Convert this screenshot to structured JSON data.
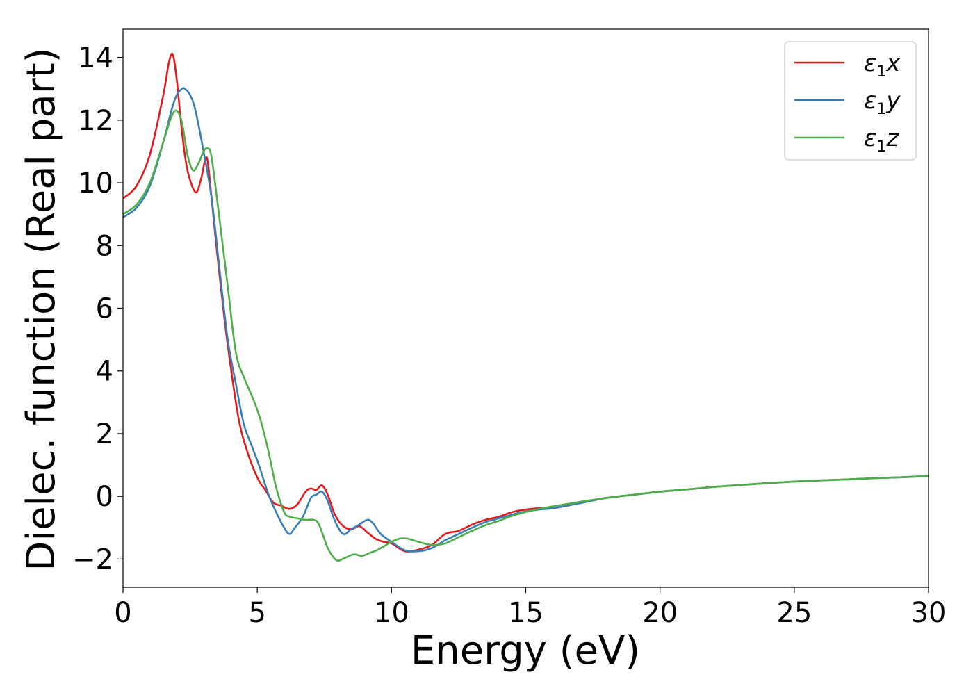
{
  "chart_data": {
    "type": "line",
    "title": "",
    "xlabel": "Energy (eV)",
    "ylabel": "Dielec. function (Real part)",
    "xlim": [
      0,
      30
    ],
    "ylim": [
      -2.9,
      14.9
    ],
    "x_ticks": [
      0,
      5,
      10,
      15,
      20,
      25,
      30
    ],
    "x_tick_labels": [
      "0",
      "5",
      "10",
      "15",
      "20",
      "25",
      "30"
    ],
    "y_ticks": [
      -2,
      0,
      2,
      4,
      6,
      8,
      10,
      12,
      14
    ],
    "y_tick_labels": [
      "−2",
      "0",
      "2",
      "4",
      "6",
      "8",
      "10",
      "12",
      "14"
    ],
    "grid": false,
    "legend_position": "top-right",
    "series": [
      {
        "name": "ε1x",
        "symbol": "ε",
        "subscript": "1",
        "suffix": "x",
        "color": "#e41a1c",
        "x": [
          0,
          0.5,
          1.0,
          1.5,
          1.7,
          1.85,
          2.0,
          2.2,
          2.4,
          2.7,
          2.9,
          3.05,
          3.15,
          3.3,
          3.5,
          3.8,
          4.0,
          4.3,
          4.6,
          5.0,
          5.3,
          5.6,
          5.9,
          6.2,
          6.5,
          6.8,
          7.0,
          7.2,
          7.4,
          7.6,
          7.9,
          8.2,
          8.5,
          8.8,
          9.1,
          9.4,
          9.7,
          10.0,
          10.5,
          11.0,
          11.5,
          12.0,
          12.5,
          13.0,
          13.5,
          14.0,
          14.5,
          15.0,
          15.5,
          16.0,
          17.0,
          18.0,
          19.0,
          20.0,
          21.0,
          22.0,
          23.0,
          24.0,
          25.0,
          26.0,
          27.0,
          28.0,
          29.0,
          30.0
        ],
        "y": [
          9.5,
          9.9,
          10.9,
          12.8,
          13.8,
          14.1,
          13.3,
          11.6,
          10.4,
          9.7,
          10.1,
          10.7,
          10.7,
          9.5,
          7.8,
          5.5,
          4.2,
          2.5,
          1.5,
          0.6,
          0.2,
          -0.2,
          -0.3,
          -0.4,
          -0.25,
          0.15,
          0.25,
          0.2,
          0.35,
          0.1,
          -0.6,
          -0.95,
          -1.05,
          -0.95,
          -1.15,
          -1.35,
          -1.45,
          -1.5,
          -1.75,
          -1.7,
          -1.55,
          -1.2,
          -1.1,
          -0.9,
          -0.75,
          -0.65,
          -0.5,
          -0.42,
          -0.38,
          -0.38,
          -0.22,
          -0.05,
          0.05,
          0.15,
          0.22,
          0.3,
          0.36,
          0.42,
          0.47,
          0.51,
          0.54,
          0.58,
          0.61,
          0.65
        ]
      },
      {
        "name": "ε1y",
        "symbol": "ε",
        "subscript": "1",
        "suffix": "y",
        "color": "#377eb8",
        "x": [
          0,
          0.5,
          1.0,
          1.5,
          1.8,
          2.0,
          2.2,
          2.3,
          2.5,
          2.7,
          3.0,
          3.3,
          3.6,
          3.9,
          4.2,
          4.5,
          4.8,
          5.1,
          5.4,
          5.7,
          6.0,
          6.2,
          6.4,
          6.7,
          7.0,
          7.2,
          7.4,
          7.6,
          7.9,
          8.2,
          8.5,
          8.8,
          9.1,
          9.3,
          9.6,
          10.0,
          10.5,
          11.0,
          11.5,
          12.0,
          12.5,
          13.0,
          13.5,
          14.0,
          14.5,
          15.0,
          15.5,
          16.0,
          17.0,
          18.0,
          19.0,
          20.0,
          21.0,
          22.0,
          23.0,
          24.0,
          25.0,
          26.0,
          27.0,
          28.0,
          29.0,
          30.0
        ],
        "y": [
          8.9,
          9.2,
          9.9,
          11.3,
          12.3,
          12.8,
          13.0,
          13.0,
          12.8,
          12.3,
          11.0,
          9.5,
          7.2,
          5.0,
          3.6,
          2.3,
          1.6,
          0.9,
          0.1,
          -0.5,
          -1.0,
          -1.2,
          -1.0,
          -0.65,
          -0.05,
          0.05,
          0.15,
          -0.1,
          -0.8,
          -1.2,
          -1.05,
          -0.9,
          -0.75,
          -0.85,
          -1.2,
          -1.45,
          -1.72,
          -1.75,
          -1.65,
          -1.4,
          -1.2,
          -1.0,
          -0.82,
          -0.7,
          -0.58,
          -0.48,
          -0.42,
          -0.38,
          -0.22,
          -0.05,
          0.05,
          0.15,
          0.22,
          0.3,
          0.36,
          0.42,
          0.47,
          0.51,
          0.54,
          0.58,
          0.61,
          0.65
        ]
      },
      {
        "name": "ε1z",
        "symbol": "ε",
        "subscript": "1",
        "suffix": "z",
        "color": "#4daf4a",
        "x": [
          0,
          0.5,
          1.0,
          1.5,
          1.8,
          2.0,
          2.2,
          2.4,
          2.6,
          2.8,
          3.0,
          3.15,
          3.3,
          3.6,
          3.9,
          4.2,
          4.5,
          4.8,
          5.1,
          5.4,
          5.7,
          6.0,
          6.2,
          6.5,
          6.8,
          7.1,
          7.3,
          7.6,
          7.8,
          8.0,
          8.3,
          8.6,
          8.9,
          9.2,
          9.5,
          10.0,
          10.3,
          10.6,
          11.0,
          11.5,
          12.0,
          12.5,
          13.0,
          13.5,
          14.0,
          14.5,
          15.0,
          15.5,
          16.0,
          17.0,
          18.0,
          19.0,
          20.0,
          21.0,
          22.0,
          23.0,
          24.0,
          25.0,
          26.0,
          27.0,
          28.0,
          29.0,
          30.0
        ],
        "y": [
          9.0,
          9.3,
          10.0,
          11.3,
          12.1,
          12.3,
          11.9,
          10.9,
          10.4,
          10.6,
          11.0,
          11.1,
          10.8,
          8.8,
          6.7,
          4.6,
          3.8,
          3.2,
          2.5,
          1.5,
          0.3,
          -0.5,
          -0.65,
          -0.7,
          -0.75,
          -0.75,
          -0.9,
          -1.6,
          -1.9,
          -2.05,
          -1.95,
          -1.85,
          -1.9,
          -1.8,
          -1.7,
          -1.45,
          -1.35,
          -1.35,
          -1.45,
          -1.55,
          -1.5,
          -1.3,
          -1.1,
          -0.92,
          -0.78,
          -0.62,
          -0.5,
          -0.4,
          -0.32,
          -0.18,
          -0.05,
          0.05,
          0.15,
          0.22,
          0.3,
          0.36,
          0.42,
          0.47,
          0.51,
          0.54,
          0.58,
          0.61,
          0.65
        ]
      }
    ]
  }
}
